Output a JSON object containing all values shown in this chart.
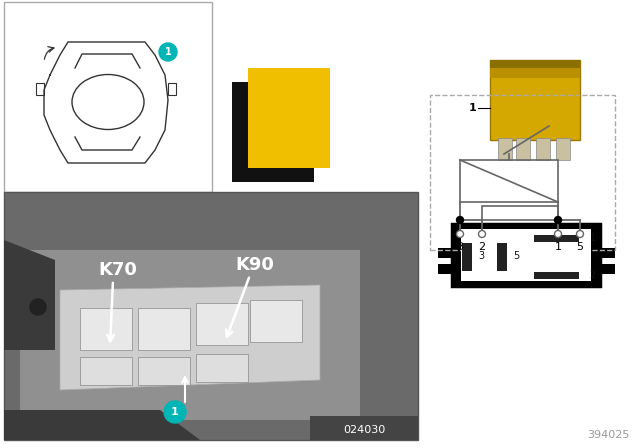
{
  "bg_color": "#ffffff",
  "teal_color": "#00B5B5",
  "yellow_color": "#F0C000",
  "black_color": "#111111",
  "gray_light": "#cccccc",
  "gray_mid": "#999999",
  "gray_dark": "#555555",
  "gray_photo": "#888888",
  "label_k70": "K70",
  "label_k90": "K90",
  "label_ref": "394025",
  "label_photo_num": "024030",
  "schematic_dash_color": "#aaaaaa",
  "schematic_line_color": "#666666",
  "car_box_border": "#aaaaaa",
  "relay_yellow": "#D4A800",
  "relay_dark": "#8B7000",
  "pin_numbers": [
    "1",
    "2",
    "3",
    "5"
  ],
  "schematic_pins": [
    "3",
    "2",
    "1",
    "5"
  ]
}
